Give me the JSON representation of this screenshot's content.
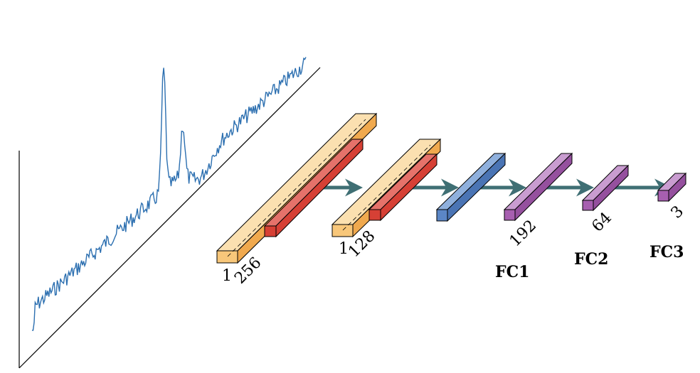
{
  "conv_layers": [
    {
      "id": "conv1",
      "label_depth": "1",
      "label_width": "256"
    },
    {
      "id": "conv2",
      "label_depth": "1",
      "label_width": "128"
    }
  ],
  "fc_layers": [
    {
      "id": "fc1",
      "name": "FC1",
      "units": "192"
    },
    {
      "id": "fc2",
      "name": "FC2",
      "units": "64"
    },
    {
      "id": "fc3",
      "name": "FC3",
      "units": "3"
    }
  ],
  "colors": {
    "signal": "#2c6fb0",
    "axis": "#000000",
    "conv_face": "#f8c77a",
    "conv_top": "#fbe0b0",
    "conv_side": "#f0a94e",
    "relu_face": "#d64035",
    "fc1_face": "#5b86c6",
    "fc_face": "#a75fb0",
    "arrow": "#3f6f74"
  }
}
